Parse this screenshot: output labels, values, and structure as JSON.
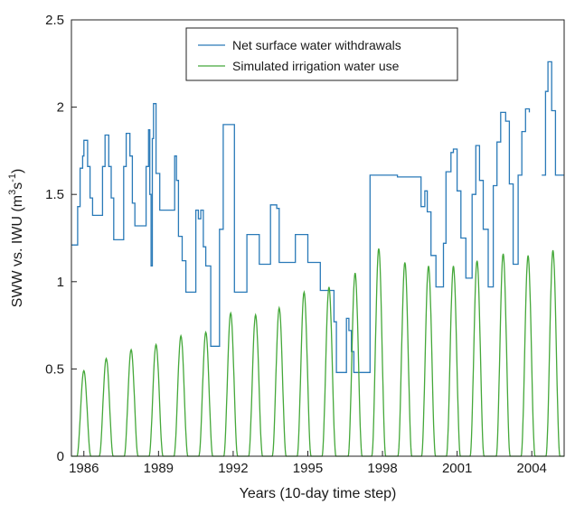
{
  "chart_data": {
    "type": "line",
    "title": "",
    "xlabel": "Years (10-day time step)",
    "ylabel": "SWW vs. IWU (m",
    "ylabel_sup": "3",
    "ylabel_s": "s",
    "ylabel_sup2": "-1",
    "ylabel_end": ")",
    "xlim": [
      1985.5,
      2005.3
    ],
    "ylim": [
      0,
      2.5
    ],
    "x_ticks": [
      1986,
      1989,
      1992,
      1995,
      1998,
      2001,
      2004
    ],
    "x_tick_labels": [
      "1986",
      "1989",
      "1992",
      "1995",
      "1998",
      "2001",
      "2004"
    ],
    "y_ticks": [
      0,
      0.5,
      1,
      1.5,
      2,
      2.5
    ],
    "y_tick_labels": [
      "0",
      "0.5",
      "1",
      "1.5",
      "2",
      "2.5"
    ],
    "grid": false,
    "legend_position": "top-center",
    "series": [
      {
        "name": "Net surface water withdrawals",
        "color": "#2a7ab8",
        "step": true,
        "points": [
          [
            1985.5,
            1.21
          ],
          [
            1985.75,
            1.43
          ],
          [
            1985.85,
            1.65
          ],
          [
            1985.95,
            1.72
          ],
          [
            1986.0,
            1.81
          ],
          [
            1986.15,
            1.66
          ],
          [
            1986.25,
            1.48
          ],
          [
            1986.35,
            1.38
          ],
          [
            1986.6,
            1.38
          ],
          [
            1986.75,
            1.66
          ],
          [
            1986.85,
            1.84
          ],
          [
            1987.0,
            1.66
          ],
          [
            1987.1,
            1.48
          ],
          [
            1987.2,
            1.24
          ],
          [
            1987.5,
            1.24
          ],
          [
            1987.6,
            1.66
          ],
          [
            1987.7,
            1.85
          ],
          [
            1987.85,
            1.72
          ],
          [
            1987.95,
            1.45
          ],
          [
            1988.05,
            1.32
          ],
          [
            1988.4,
            1.32
          ],
          [
            1988.5,
            1.66
          ],
          [
            1988.6,
            1.87
          ],
          [
            1988.65,
            1.5
          ],
          [
            1988.7,
            1.09
          ],
          [
            1988.75,
            1.82
          ],
          [
            1988.8,
            2.02
          ],
          [
            1988.9,
            1.62
          ],
          [
            1989.05,
            1.41
          ],
          [
            1989.6,
            1.41
          ],
          [
            1989.65,
            1.72
          ],
          [
            1989.72,
            1.58
          ],
          [
            1989.8,
            1.26
          ],
          [
            1989.95,
            1.12
          ],
          [
            1990.1,
            0.94
          ],
          [
            1990.4,
            0.94
          ],
          [
            1990.5,
            1.41
          ],
          [
            1990.6,
            1.36
          ],
          [
            1990.7,
            1.41
          ],
          [
            1990.8,
            1.2
          ],
          [
            1990.9,
            1.09
          ],
          [
            1991.1,
            0.63
          ],
          [
            1991.3,
            0.63
          ],
          [
            1991.45,
            1.3
          ],
          [
            1991.6,
            1.9
          ],
          [
            1991.95,
            1.9
          ],
          [
            1992.05,
            0.94
          ],
          [
            1992.45,
            0.94
          ],
          [
            1992.55,
            1.27
          ],
          [
            1992.95,
            1.27
          ],
          [
            1993.05,
            1.1
          ],
          [
            1993.4,
            1.1
          ],
          [
            1993.5,
            1.44
          ],
          [
            1993.75,
            1.42
          ],
          [
            1993.85,
            1.11
          ],
          [
            1994.4,
            1.11
          ],
          [
            1994.5,
            1.27
          ],
          [
            1994.9,
            1.27
          ],
          [
            1995.0,
            1.11
          ],
          [
            1995.3,
            1.11
          ],
          [
            1995.5,
            0.95
          ],
          [
            1995.9,
            0.95
          ],
          [
            1996.05,
            0.77
          ],
          [
            1996.15,
            0.48
          ],
          [
            1996.5,
            0.48
          ],
          [
            1996.55,
            0.79
          ],
          [
            1996.65,
            0.72
          ],
          [
            1996.75,
            0.6
          ],
          [
            1996.85,
            0.48
          ],
          [
            1997.4,
            0.48
          ],
          [
            1997.5,
            1.61
          ],
          [
            1998.5,
            1.61
          ],
          [
            1998.6,
            1.6
          ],
          [
            1999.45,
            1.6
          ],
          [
            1999.55,
            1.43
          ],
          [
            1999.7,
            1.52
          ],
          [
            1999.8,
            1.4
          ],
          [
            1999.95,
            1.15
          ],
          [
            2000.15,
            0.97
          ],
          [
            2000.45,
            1.22
          ],
          [
            2000.55,
            1.63
          ],
          [
            2000.75,
            1.74
          ],
          [
            2000.85,
            1.76
          ],
          [
            2001.0,
            1.52
          ],
          [
            2001.15,
            1.25
          ],
          [
            2001.35,
            1.02
          ],
          [
            2001.6,
            1.5
          ],
          [
            2001.75,
            1.78
          ],
          [
            2001.9,
            1.58
          ],
          [
            2002.05,
            1.3
          ],
          [
            2002.25,
            0.97
          ],
          [
            2002.45,
            1.55
          ],
          [
            2002.6,
            1.8
          ],
          [
            2002.75,
            1.97
          ],
          [
            2002.95,
            1.92
          ],
          [
            2003.1,
            1.56
          ],
          [
            2003.25,
            1.1
          ],
          [
            2003.45,
            1.61
          ],
          [
            2003.6,
            1.86
          ],
          [
            2003.75,
            1.99
          ],
          [
            2003.9,
            1.97
          ],
          [
            2004.0,
            null
          ],
          [
            2004.4,
            1.61
          ],
          [
            2004.55,
            2.09
          ],
          [
            2004.65,
            2.26
          ],
          [
            2004.8,
            1.98
          ],
          [
            2004.95,
            1.61
          ],
          [
            2005.3,
            1.61
          ]
        ]
      },
      {
        "name": "Simulated irrigation water use",
        "color": "#45a83a",
        "step": false,
        "peaks": [
          [
            1986.0,
            0.49
          ],
          [
            1986.9,
            0.56
          ],
          [
            1987.9,
            0.61
          ],
          [
            1988.9,
            0.64
          ],
          [
            1989.9,
            0.69
          ],
          [
            1990.9,
            0.71
          ],
          [
            1991.9,
            0.82
          ],
          [
            1992.9,
            0.81
          ],
          [
            1993.85,
            0.85
          ],
          [
            1994.85,
            0.94
          ],
          [
            1995.85,
            0.97
          ],
          [
            1996.9,
            1.05
          ],
          [
            1997.85,
            1.19
          ],
          [
            1998.9,
            1.11
          ],
          [
            1999.85,
            1.09
          ],
          [
            2000.85,
            1.09
          ],
          [
            2001.8,
            1.12
          ],
          [
            2002.85,
            1.16
          ],
          [
            2003.85,
            1.15
          ],
          [
            2004.85,
            1.18
          ]
        ]
      }
    ]
  }
}
